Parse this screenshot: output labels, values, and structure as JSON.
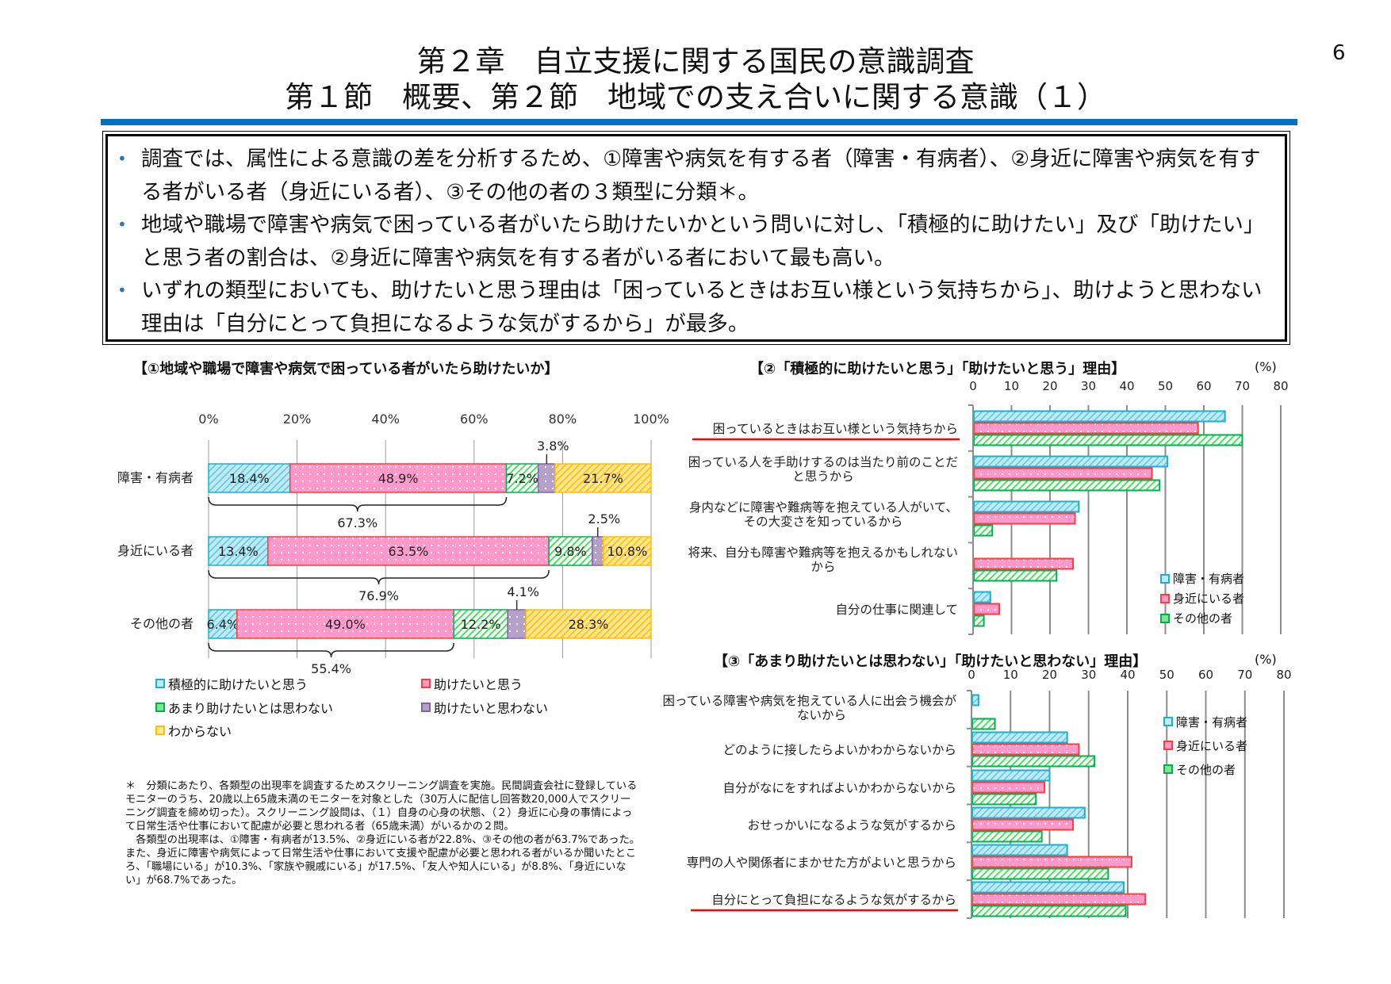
{
  "header": {
    "title_line1": "第２章　自立支援に関する国民の意識調査",
    "title_line2": "第１節　概要、第２節　地域での支え合いに関する意識（１）",
    "page_number": "6"
  },
  "summary": {
    "bullets": [
      "調査では、属性による意識の差を分析するため、①障害や病気を有する者（障害・有病者）、②身近に障害や病気を有する者がいる者（身近にいる者）、③その他の者の３類型に分類＊。",
      "地域や職場で障害や病気で困っている者がいたら助けたいかという問いに対し、「積極的に助けたい」及び「助けたい」と思う者の割合は、②身近に障害や病気を有する者がいる者において最も高い。",
      "いずれの類型においても、助けたいと思う理由は「困っているときはお互い様という気持ちから」、助けようと思わない理由は「自分にとって負担になるような気がするから」が最多。"
    ]
  },
  "colors": {
    "blue": "#1ab0d0",
    "pink": "#ff3b3b",
    "green": "#00b050",
    "purple": "#8064a2",
    "yellow": "#ffc000",
    "accent_bar": "#0070c0",
    "underline": "#ff0000"
  },
  "chart_data": [
    {
      "type": "bar",
      "orientation": "horizontal-stacked",
      "title": "【①地域や職場で障害や病気で困っている者がいたら助けたいか】",
      "xlim": [
        0,
        100
      ],
      "ticks": [
        "0%",
        "20%",
        "40%",
        "60%",
        "80%",
        "100%"
      ],
      "categories": [
        "障害・有病者",
        "身近にいる者",
        "その他の者"
      ],
      "series": [
        {
          "name": "積極的に助けたいと思う",
          "values": [
            18.4,
            13.4,
            6.4
          ],
          "labels": [
            "18.4%",
            "13.4%",
            "6.4%"
          ],
          "color": "#1ab0d0",
          "fill": "hatch"
        },
        {
          "name": "助けたいと思う",
          "values": [
            48.9,
            63.5,
            49.0
          ],
          "labels": [
            "48.9%",
            "63.5%",
            "49.0%"
          ],
          "color": "#ff3b3b",
          "fill": "dots"
        },
        {
          "name": "あまり助けたいとは思わない",
          "values": [
            7.2,
            9.8,
            12.2
          ],
          "labels": [
            "7.2%",
            "9.8%",
            "12.2%"
          ],
          "color": "#00b050",
          "fill": "hatch"
        },
        {
          "name": "助けたいと思わない",
          "values": [
            3.8,
            2.5,
            4.1
          ],
          "labels": [
            "3.8%",
            "2.5%",
            "4.1%"
          ],
          "color": "#8064a2",
          "fill": "dots"
        },
        {
          "name": "わからない",
          "values": [
            21.7,
            10.8,
            28.3
          ],
          "labels": [
            "21.7%",
            "10.8%",
            "28.3%"
          ],
          "color": "#ffc000",
          "fill": "hatch"
        }
      ],
      "bracket_totals": [
        "67.3%",
        "76.9%",
        "55.4%"
      ],
      "legend": "bottom",
      "grid": true
    },
    {
      "type": "bar",
      "orientation": "horizontal-grouped",
      "title": "【②「積極的に助けたいと思う」「助けたいと思う」理由】",
      "unit": "(%)",
      "xlim": [
        0,
        80
      ],
      "ticks": [
        "0",
        "10",
        "20",
        "30",
        "40",
        "50",
        "60",
        "70",
        "80"
      ],
      "categories": [
        [
          "困っているときはお互い様という気持ちから"
        ],
        [
          "困っている人を手助けするのは当たり前のことだ",
          "と思うから"
        ],
        [
          "身内などに障害や難病等を抱えている人がいて、",
          "その大変さを知っているから"
        ],
        [
          "将来、自分も障害や難病等を抱えるかもしれない",
          "から"
        ],
        [
          "自分の仕事に関連して"
        ]
      ],
      "underlined_categories": [
        0
      ],
      "series": [
        {
          "name": "障害・有病者",
          "values": [
            65.5,
            50.5,
            27.5,
            0,
            4.5
          ],
          "color": "#1ab0d0",
          "fill": "hatch"
        },
        {
          "name": "身近にいる者",
          "values": [
            58.5,
            46.5,
            26.5,
            26,
            6.8
          ],
          "color": "#ff3b3b",
          "fill": "dots"
        },
        {
          "name": "その他の者",
          "values": [
            70,
            48.5,
            5,
            21.7,
            2.8
          ],
          "color": "#00b050",
          "fill": "hatch"
        }
      ],
      "legend": "right",
      "grid": true
    },
    {
      "type": "bar",
      "orientation": "horizontal-grouped",
      "title": "【③「あまり助けたいとは思わない」「助けたいと思わない」理由】",
      "unit": "(%)",
      "xlim": [
        0,
        80
      ],
      "ticks": [
        "0",
        "10",
        "20",
        "30",
        "40",
        "50",
        "60",
        "70",
        "80"
      ],
      "categories": [
        [
          "困っている障害や病気を抱えている人に出会う機会が",
          "ないから"
        ],
        [
          "どのように接したらよいかわからないから"
        ],
        [
          "自分がなにをすればよいかわからないから"
        ],
        [
          "おせっかいになるような気がするから"
        ],
        [
          "専門の人や関係者にまかせた方がよいと思うから"
        ],
        [
          "自分にとって負担になるような気がするから"
        ]
      ],
      "underlined_categories": [
        5
      ],
      "series": [
        {
          "name": "障害・有病者",
          "values": [
            1.8,
            24.5,
            20,
            29,
            24.5,
            39
          ],
          "color": "#1ab0d0",
          "fill": "hatch"
        },
        {
          "name": "身近にいる者",
          "values": [
            0,
            27.5,
            18.7,
            26,
            41,
            44.5
          ],
          "color": "#ff3b3b",
          "fill": "dots"
        },
        {
          "name": "その他の者",
          "values": [
            6,
            31.5,
            16.5,
            18,
            35,
            39.5
          ],
          "color": "#00b050",
          "fill": "hatch"
        }
      ],
      "legend": "right",
      "grid": true
    }
  ],
  "footnote": {
    "para1": "＊　分類にあたり、各類型の出現率を調査するためスクリーニング調査を実施。民間調査会社に登録しているモニターのうち、20歳以上65歳未満のモニターを対象とした（30万人に配信し回答数20,000人でスクリーニング調査を締め切った）。スクリーニング設問は、（１）自身の心身の状態、（２）身近に心身の事情によって日常生活や仕事において配慮が必要と思われる者（65歳未満）がいるかの２問。",
    "para2": "　各類型の出現率は、①障害・有病者が13.5%、②身近にいる者が22.8%、③その他の者が63.7%であった。また、身近に障害や病気によって日常生活や仕事において支援や配慮が必要と思われる者がいるか聞いたところ、「職場にいる」が10.3%、「家族や親戚にいる」が17.5%、「友人や知人にいる」が8.8%、「身近にいない」が68.7%であった。"
  }
}
